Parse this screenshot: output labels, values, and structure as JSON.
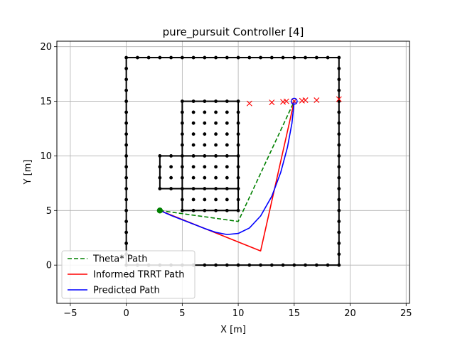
{
  "chart_data": {
    "type": "line",
    "title": "pure_pursuit Controller [4]",
    "xlabel": "X [m]",
    "ylabel": "Y [m]",
    "xlim": [
      -6.2,
      25.3
    ],
    "ylim": [
      -3.5,
      20.5
    ],
    "xticks": [
      -5,
      0,
      5,
      10,
      15,
      20,
      25
    ],
    "yticks": [
      0,
      5,
      10,
      15,
      20
    ],
    "grid": true,
    "legend_position": "lower-left",
    "obstacles": {
      "boundary": {
        "x0": 0,
        "y0": 0,
        "x1": 19,
        "y1": 19,
        "spacing": 1
      },
      "rects": [
        {
          "x0": 5,
          "y0": 5,
          "x1": 10,
          "y1": 15
        },
        {
          "x0": 3,
          "y0": 7,
          "x1": 10,
          "y1": 10
        }
      ],
      "color": "#000000"
    },
    "start": {
      "x": 3,
      "y": 5,
      "color": "#008000"
    },
    "goal": {
      "x": 15,
      "y": 15,
      "color": "#0000ff"
    },
    "markers": {
      "color": "#ff0000",
      "points": [
        [
          11,
          14.8
        ],
        [
          13,
          14.9
        ],
        [
          14,
          14.95
        ],
        [
          14.3,
          15.0
        ],
        [
          15,
          15.0
        ],
        [
          15.7,
          15.05
        ],
        [
          16,
          15.1
        ],
        [
          17,
          15.1
        ],
        [
          19,
          15.2
        ]
      ]
    },
    "series": [
      {
        "name": "Theta* Path",
        "color": "#008000",
        "style": "dashed",
        "points": [
          [
            3,
            5
          ],
          [
            10,
            4
          ],
          [
            15,
            15
          ]
        ]
      },
      {
        "name": "Informed TRRT Path",
        "color": "#ff0000",
        "style": "solid",
        "points": [
          [
            3,
            5
          ],
          [
            12,
            1.3
          ],
          [
            15,
            15
          ]
        ]
      },
      {
        "name": "Predicted Path",
        "color": "#0000ff",
        "style": "solid",
        "points": [
          [
            3,
            5
          ],
          [
            4,
            4.55
          ],
          [
            5,
            4.15
          ],
          [
            6,
            3.75
          ],
          [
            7,
            3.35
          ],
          [
            8,
            3.0
          ],
          [
            9,
            2.8
          ],
          [
            10,
            2.9
          ],
          [
            11,
            3.4
          ],
          [
            12,
            4.5
          ],
          [
            13,
            6.3
          ],
          [
            13.8,
            8.5
          ],
          [
            14.4,
            10.8
          ],
          [
            14.8,
            13.0
          ],
          [
            15,
            15
          ]
        ]
      }
    ]
  }
}
